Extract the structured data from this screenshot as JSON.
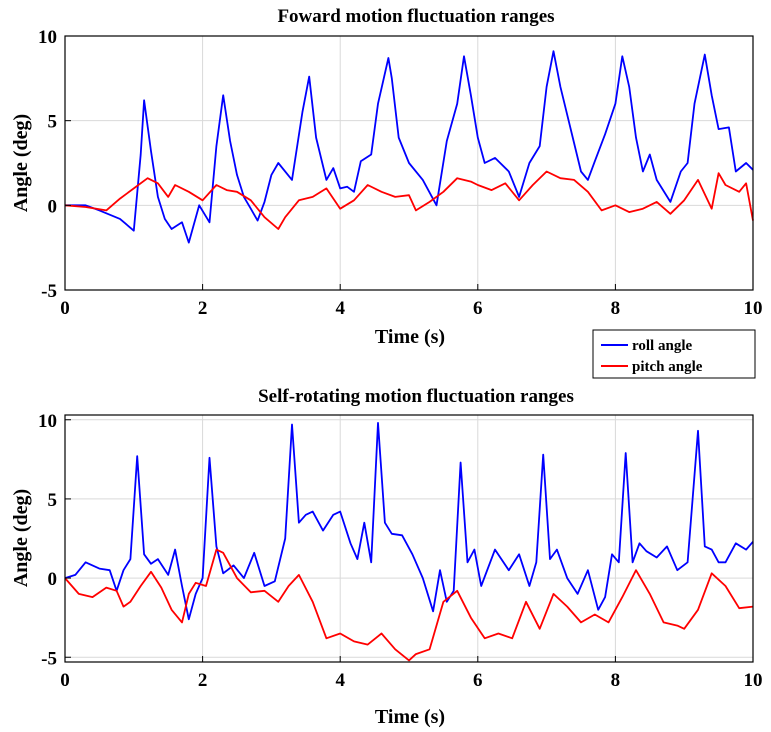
{
  "chart_data": [
    {
      "type": "line",
      "title": "Foward motion fluctuation ranges",
      "xlabel": "Time (s)",
      "ylabel": "Angle (deg)",
      "xlim": [
        0,
        10
      ],
      "ylim": [
        -5,
        10
      ],
      "xticks": [
        "0",
        "2",
        "4",
        "6",
        "8",
        "10"
      ],
      "yticks": [
        "-5",
        "0",
        "5",
        "10"
      ],
      "grid": true,
      "legend": "below-right",
      "series": [
        {
          "name": "roll angle",
          "color": "#0000ff",
          "x": [
            0,
            0.3,
            0.5,
            0.8,
            1.0,
            1.1,
            1.15,
            1.25,
            1.35,
            1.45,
            1.55,
            1.7,
            1.8,
            1.95,
            2.1,
            2.2,
            2.3,
            2.4,
            2.5,
            2.6,
            2.7,
            2.8,
            2.9,
            3.0,
            3.1,
            3.3,
            3.45,
            3.55,
            3.65,
            3.8,
            3.9,
            4.0,
            4.1,
            4.2,
            4.3,
            4.45,
            4.55,
            4.7,
            4.75,
            4.85,
            5.0,
            5.2,
            5.4,
            5.55,
            5.7,
            5.8,
            5.9,
            6.0,
            6.1,
            6.25,
            6.45,
            6.6,
            6.75,
            6.9,
            7.0,
            7.1,
            7.2,
            7.35,
            7.5,
            7.6,
            7.7,
            7.85,
            8.0,
            8.1,
            8.2,
            8.3,
            8.4,
            8.5,
            8.6,
            8.8,
            8.95,
            9.05,
            9.15,
            9.3,
            9.4,
            9.5,
            9.65,
            9.75,
            9.9,
            10.0
          ],
          "y": [
            0,
            0,
            -0.3,
            -0.8,
            -1.5,
            3.0,
            6.2,
            3.2,
            0.5,
            -0.8,
            -1.4,
            -1.0,
            -2.2,
            0.0,
            -1.0,
            3.5,
            6.5,
            3.8,
            1.8,
            0.5,
            -0.2,
            -0.9,
            0.2,
            1.8,
            2.5,
            1.5,
            5.5,
            7.6,
            4.0,
            1.5,
            2.2,
            1.0,
            1.1,
            0.8,
            2.6,
            3.0,
            6.0,
            8.7,
            7.5,
            4.0,
            2.5,
            1.5,
            0.0,
            3.8,
            6.0,
            8.8,
            6.5,
            4.0,
            2.5,
            2.8,
            2.0,
            0.5,
            2.5,
            3.5,
            7.0,
            9.1,
            7.0,
            4.5,
            2.0,
            1.5,
            2.6,
            4.2,
            6.0,
            8.8,
            7.0,
            4.0,
            2.0,
            3.0,
            1.5,
            0.2,
            2.0,
            2.5,
            6.0,
            8.9,
            6.5,
            4.5,
            4.6,
            2.0,
            2.5,
            2.1
          ]
        },
        {
          "name": "pitch angle",
          "color": "#ff0000",
          "x": [
            0,
            0.3,
            0.6,
            0.8,
            1.0,
            1.2,
            1.35,
            1.5,
            1.6,
            1.8,
            2.0,
            2.2,
            2.35,
            2.5,
            2.7,
            2.9,
            3.1,
            3.2,
            3.4,
            3.6,
            3.8,
            4.0,
            4.2,
            4.4,
            4.6,
            4.8,
            5.0,
            5.1,
            5.3,
            5.5,
            5.7,
            5.9,
            6.0,
            6.2,
            6.4,
            6.6,
            6.8,
            7.0,
            7.2,
            7.4,
            7.6,
            7.8,
            8.0,
            8.2,
            8.4,
            8.6,
            8.8,
            9.0,
            9.2,
            9.4,
            9.5,
            9.6,
            9.8,
            9.9,
            10.0
          ],
          "y": [
            0,
            -0.1,
            -0.3,
            0.4,
            1.0,
            1.6,
            1.3,
            0.5,
            1.2,
            0.8,
            0.3,
            1.2,
            0.9,
            0.8,
            0.3,
            -0.7,
            -1.4,
            -0.7,
            0.3,
            0.5,
            1.0,
            -0.2,
            0.3,
            1.2,
            0.8,
            0.5,
            0.6,
            -0.3,
            0.2,
            0.8,
            1.6,
            1.4,
            1.2,
            0.9,
            1.3,
            0.3,
            1.2,
            2.0,
            1.6,
            1.5,
            0.8,
            -0.3,
            0.0,
            -0.4,
            -0.2,
            0.2,
            -0.5,
            0.3,
            1.5,
            -0.2,
            1.9,
            1.2,
            0.8,
            1.3,
            -0.9
          ]
        }
      ]
    },
    {
      "type": "line",
      "title": "Self-rotating motion fluctuation ranges",
      "xlabel": "Time (s)",
      "ylabel": "Angle (deg)",
      "xlim": [
        0,
        10
      ],
      "ylim": [
        -5.3,
        10.3
      ],
      "xticks": [
        "0",
        "2",
        "4",
        "6",
        "8",
        "10"
      ],
      "yticks": [
        "-5",
        "0",
        "5",
        "10"
      ],
      "grid": true,
      "series": [
        {
          "name": "roll angle",
          "color": "#0000ff",
          "x": [
            0,
            0.15,
            0.3,
            0.5,
            0.65,
            0.75,
            0.85,
            0.95,
            1.05,
            1.15,
            1.25,
            1.35,
            1.5,
            1.6,
            1.7,
            1.8,
            1.9,
            2.0,
            2.1,
            2.2,
            2.3,
            2.45,
            2.6,
            2.75,
            2.9,
            3.05,
            3.2,
            3.3,
            3.4,
            3.5,
            3.6,
            3.75,
            3.9,
            4.0,
            4.15,
            4.25,
            4.35,
            4.45,
            4.55,
            4.65,
            4.75,
            4.9,
            5.05,
            5.2,
            5.35,
            5.45,
            5.55,
            5.65,
            5.75,
            5.85,
            5.95,
            6.05,
            6.25,
            6.45,
            6.6,
            6.75,
            6.85,
            6.95,
            7.05,
            7.15,
            7.3,
            7.45,
            7.6,
            7.75,
            7.85,
            7.95,
            8.05,
            8.15,
            8.25,
            8.35,
            8.45,
            8.6,
            8.75,
            8.9,
            9.05,
            9.2,
            9.3,
            9.4,
            9.5,
            9.6,
            9.75,
            9.9,
            10.0
          ],
          "y": [
            0,
            0.2,
            1.0,
            0.6,
            0.5,
            -0.8,
            0.5,
            1.2,
            7.7,
            1.5,
            0.9,
            1.2,
            0.2,
            1.8,
            -0.5,
            -2.6,
            -1.0,
            0.0,
            7.6,
            2.0,
            0.3,
            0.8,
            0.0,
            1.6,
            -0.5,
            -0.2,
            2.5,
            9.7,
            3.5,
            4.0,
            4.2,
            3.0,
            4.0,
            4.2,
            2.2,
            1.2,
            3.5,
            1.0,
            9.8,
            3.5,
            2.8,
            2.7,
            1.5,
            0.0,
            -2.1,
            0.5,
            -1.5,
            -0.8,
            7.3,
            1.0,
            1.8,
            -0.5,
            1.8,
            0.5,
            1.5,
            -0.5,
            1.0,
            7.8,
            1.2,
            1.8,
            0.0,
            -1.0,
            0.5,
            -2.0,
            -1.2,
            1.5,
            1.0,
            7.9,
            1.0,
            2.2,
            1.7,
            1.3,
            2.0,
            0.5,
            1.0,
            9.3,
            2.0,
            1.8,
            1.0,
            1.0,
            2.2,
            1.8,
            2.3
          ]
        },
        {
          "name": "pitch angle",
          "color": "#ff0000",
          "x": [
            0,
            0.2,
            0.4,
            0.6,
            0.75,
            0.85,
            0.95,
            1.1,
            1.25,
            1.4,
            1.55,
            1.7,
            1.8,
            1.9,
            2.05,
            2.2,
            2.3,
            2.5,
            2.7,
            2.9,
            3.1,
            3.25,
            3.4,
            3.6,
            3.8,
            4.0,
            4.2,
            4.4,
            4.6,
            4.8,
            5.0,
            5.1,
            5.3,
            5.5,
            5.7,
            5.9,
            6.1,
            6.3,
            6.5,
            6.7,
            6.9,
            7.1,
            7.3,
            7.5,
            7.7,
            7.9,
            8.1,
            8.3,
            8.5,
            8.7,
            8.9,
            9.0,
            9.2,
            9.4,
            9.6,
            9.8,
            10.0
          ],
          "y": [
            0,
            -1.0,
            -1.2,
            -0.6,
            -0.8,
            -1.8,
            -1.5,
            -0.5,
            0.4,
            -0.6,
            -2.0,
            -2.8,
            -1.0,
            -0.3,
            -0.5,
            1.8,
            1.6,
            0.0,
            -0.9,
            -0.8,
            -1.5,
            -0.5,
            0.2,
            -1.5,
            -3.8,
            -3.5,
            -4.0,
            -4.2,
            -3.5,
            -4.5,
            -5.2,
            -4.8,
            -4.5,
            -1.5,
            -0.8,
            -2.5,
            -3.8,
            -3.5,
            -3.8,
            -1.5,
            -3.2,
            -1.0,
            -1.8,
            -2.8,
            -2.3,
            -2.8,
            -1.2,
            0.5,
            -1.0,
            -2.8,
            -3.0,
            -3.2,
            -2.0,
            0.3,
            -0.5,
            -1.9,
            -1.8
          ]
        }
      ]
    }
  ]
}
